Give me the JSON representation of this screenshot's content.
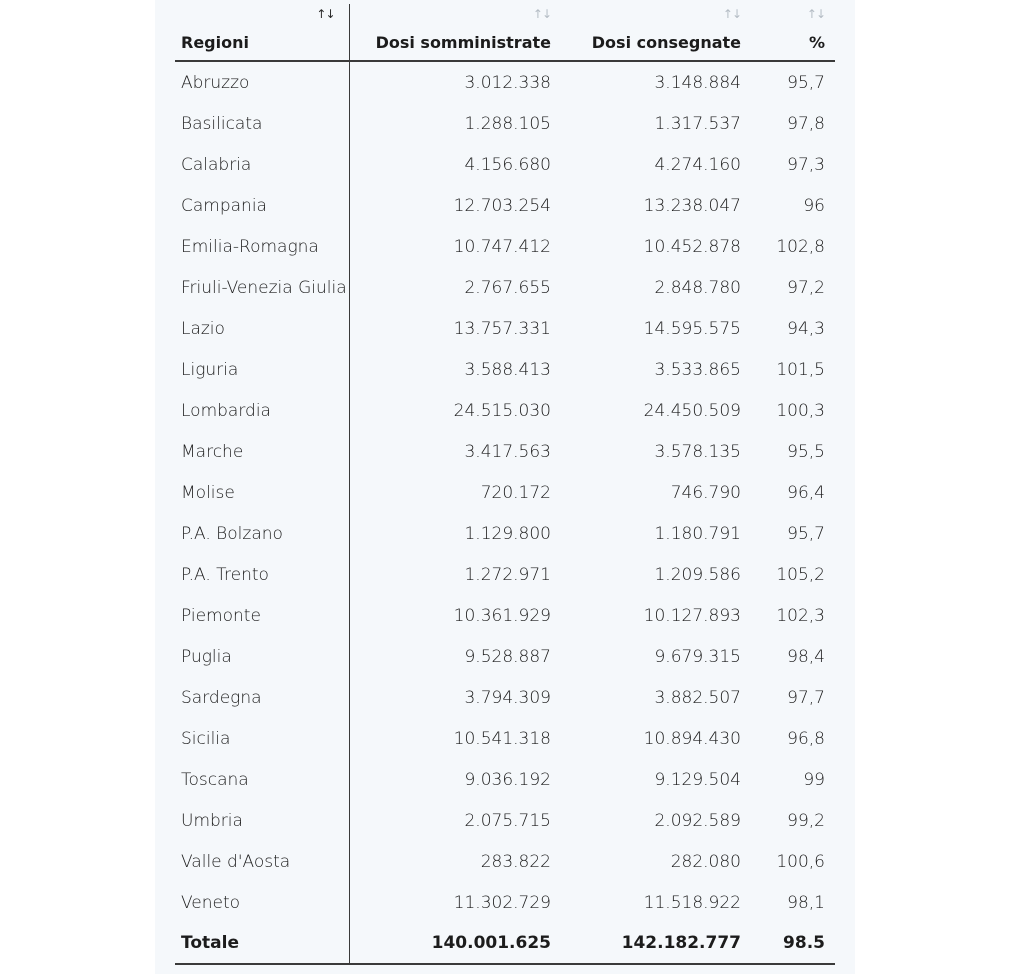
{
  "table": {
    "headers": {
      "region": "Regioni",
      "administered": "Dosi somministrate",
      "delivered": "Dosi consegnate",
      "percent": "%"
    },
    "sort_icon": "↑↓",
    "sort_active_column": "region",
    "rows": [
      {
        "region": "Abruzzo",
        "administered": "3.012.338",
        "delivered": "3.148.884",
        "percent": "95,7"
      },
      {
        "region": "Basilicata",
        "administered": "1.288.105",
        "delivered": "1.317.537",
        "percent": "97,8"
      },
      {
        "region": "Calabria",
        "administered": "4.156.680",
        "delivered": "4.274.160",
        "percent": "97,3"
      },
      {
        "region": "Campania",
        "administered": "12.703.254",
        "delivered": "13.238.047",
        "percent": "96"
      },
      {
        "region": "Emilia-Romagna",
        "administered": "10.747.412",
        "delivered": "10.452.878",
        "percent": "102,8"
      },
      {
        "region": "Friuli-Venezia Giulia",
        "administered": "2.767.655",
        "delivered": "2.848.780",
        "percent": "97,2"
      },
      {
        "region": "Lazio",
        "administered": "13.757.331",
        "delivered": "14.595.575",
        "percent": "94,3"
      },
      {
        "region": "Liguria",
        "administered": "3.588.413",
        "delivered": "3.533.865",
        "percent": "101,5"
      },
      {
        "region": "Lombardia",
        "administered": "24.515.030",
        "delivered": "24.450.509",
        "percent": "100,3"
      },
      {
        "region": "Marche",
        "administered": "3.417.563",
        "delivered": "3.578.135",
        "percent": "95,5"
      },
      {
        "region": "Molise",
        "administered": "720.172",
        "delivered": "746.790",
        "percent": "96,4"
      },
      {
        "region": "P.A. Bolzano",
        "administered": "1.129.800",
        "delivered": "1.180.791",
        "percent": "95,7"
      },
      {
        "region": "P.A. Trento",
        "administered": "1.272.971",
        "delivered": "1.209.586",
        "percent": "105,2"
      },
      {
        "region": "Piemonte",
        "administered": "10.361.929",
        "delivered": "10.127.893",
        "percent": "102,3"
      },
      {
        "region": "Puglia",
        "administered": "9.528.887",
        "delivered": "9.679.315",
        "percent": "98,4"
      },
      {
        "region": "Sardegna",
        "administered": "3.794.309",
        "delivered": "3.882.507",
        "percent": "97,7"
      },
      {
        "region": "Sicilia",
        "administered": "10.541.318",
        "delivered": "10.894.430",
        "percent": "96,8"
      },
      {
        "region": "Toscana",
        "administered": "9.036.192",
        "delivered": "9.129.504",
        "percent": "99"
      },
      {
        "region": "Umbria",
        "administered": "2.075.715",
        "delivered": "2.092.589",
        "percent": "99,2"
      },
      {
        "region": "Valle d'Aosta",
        "administered": "283.822",
        "delivered": "282.080",
        "percent": "100,6"
      },
      {
        "region": "Veneto",
        "administered": "11.302.729",
        "delivered": "11.518.922",
        "percent": "98,1"
      }
    ],
    "total": {
      "region": "Totale",
      "administered": "140.001.625",
      "delivered": "142.182.777",
      "percent": "98.5"
    }
  },
  "colors": {
    "panel_background": "#f5f8fb",
    "rule": "#3a3a3a",
    "sort_inactive": "#b4bcc4",
    "sort_active": "#2a2a2a"
  }
}
